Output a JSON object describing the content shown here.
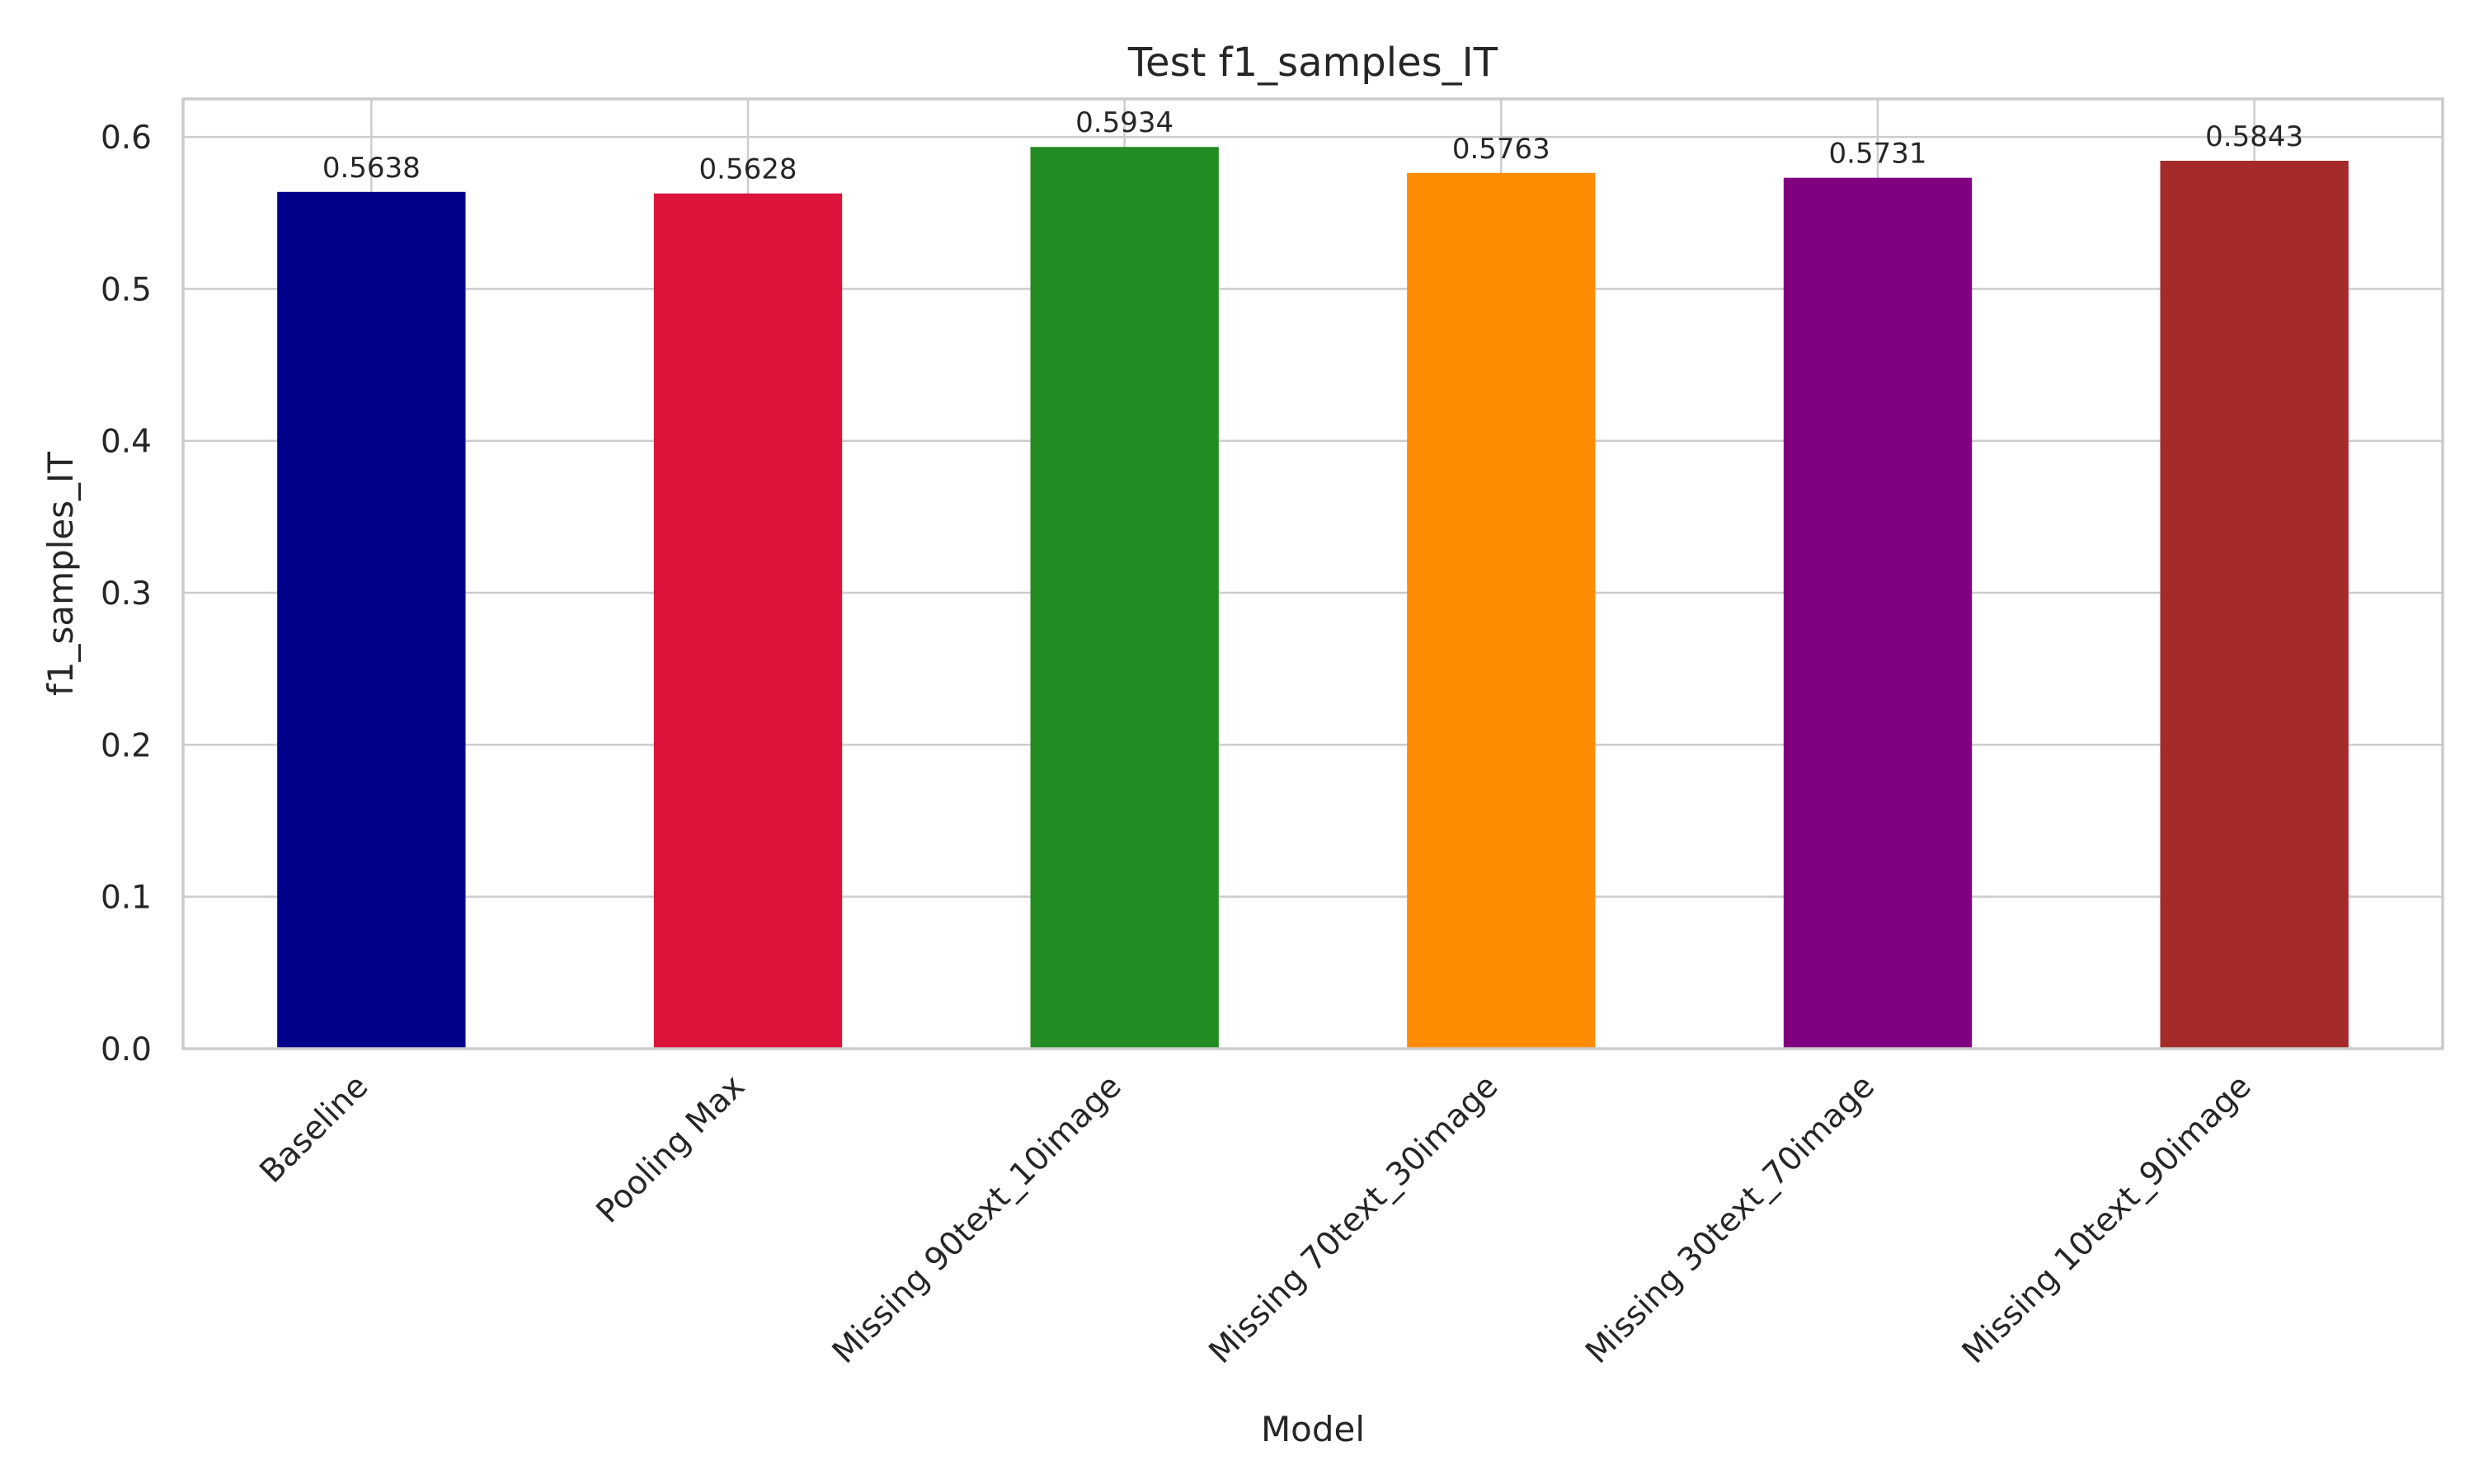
{
  "chart_data": {
    "type": "bar",
    "title": "Test f1_samples_IT",
    "xlabel": "Model",
    "ylabel": "f1_samples_IT",
    "categories": [
      "Baseline",
      "Pooling Max",
      "Missing 90text_10image",
      "Missing 70text_30image",
      "Missing 30text_70image",
      "Missing 10text_90image"
    ],
    "values": [
      0.5638,
      0.5628,
      0.5934,
      0.5763,
      0.5731,
      0.5843
    ],
    "value_labels": [
      "0.5638",
      "0.5628",
      "0.5934",
      "0.5763",
      "0.5731",
      "0.5843"
    ],
    "colors": [
      "#00008b",
      "#dc143c",
      "#228b22",
      "#ff8c00",
      "#800080",
      "#a52a2a"
    ],
    "ylim": [
      0,
      0.625
    ],
    "yticks": [
      0.0,
      0.1,
      0.2,
      0.3,
      0.4,
      0.5,
      0.6
    ],
    "ytick_labels": [
      "0.0",
      "0.1",
      "0.2",
      "0.3",
      "0.4",
      "0.5",
      "0.6"
    ],
    "grid": true,
    "legend": "none"
  }
}
